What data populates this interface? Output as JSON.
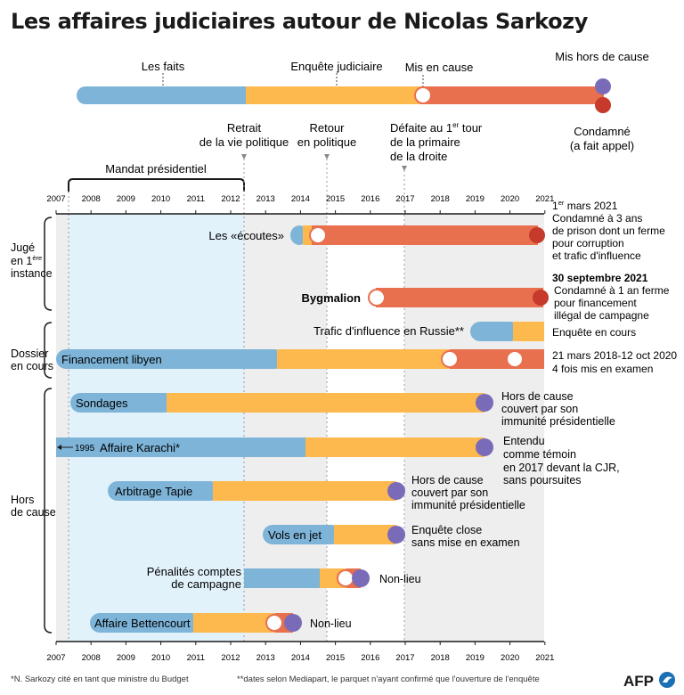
{
  "title": "Les affaires judiciaires autour de Nicolas Sarkozy",
  "colors": {
    "faits": "#7db4d8",
    "enquete": "#fdb94d",
    "mis_en_cause": "#e8704f",
    "hors_de_cause": "#7a6bb8",
    "condamne": "#c53a2a",
    "mandate_bg": "#e2f2fb",
    "grey_bg": "#eeeeee"
  },
  "legend": {
    "faits": "Les faits",
    "enquete": "Enquête judiciaire",
    "mis_en_cause": "Mis en cause",
    "hors_de_cause": "Mis hors de cause",
    "condamne_line1": "Condamné",
    "condamne_line2": "(a fait appel)"
  },
  "milestones": {
    "retrait_1": "Retrait",
    "retrait_2": "de la vie politique",
    "retour_1": "Retour",
    "retour_2": "en politique",
    "defaite_1": "Défaite au 1",
    "defaite_sup": "er",
    "defaite_1b": " tour",
    "defaite_2": "de la primaire",
    "defaite_3": "de la droite"
  },
  "mandat_label": "Mandat présidentiel",
  "years": [
    "2007",
    "2008",
    "2009",
    "2010",
    "2011",
    "2012",
    "2013",
    "2014",
    "2015",
    "2016",
    "2017",
    "2018",
    "2019",
    "2020",
    "2021"
  ],
  "groups": {
    "juge_1": "Jugé",
    "juge_2a": "en 1",
    "juge_2sup": "ère",
    "juge_3": "instance",
    "dossier_1": "Dossier",
    "dossier_2": "en cours",
    "hors_1": "Hors",
    "hors_2": "de cause"
  },
  "cases": {
    "ecoutes": "Les «écoutes»",
    "bygmalion": "Bygmalion",
    "russie": "Trafic d'influence en Russie**",
    "libyen": "Financement libyen",
    "sondages": "Sondages",
    "karachi": "Affaire Karachi*",
    "karachi_arrow": "1995",
    "tapie": "Arbitrage Tapie",
    "vols": "Vols en jet",
    "penalites_1": "Pénalités comptes",
    "penalites_2": "de campagne",
    "bettencourt": "Affaire Bettencourt"
  },
  "notes": {
    "ecoutes_1a": "1",
    "ecoutes_1sup": "er",
    "ecoutes_1b": " mars 2021",
    "ecoutes_2": "Condamné à 3 ans",
    "ecoutes_3": "de prison dont un ferme",
    "ecoutes_4": "pour corruption",
    "ecoutes_5": "et trafic d'influence",
    "bygmalion_1": "30 septembre 2021",
    "bygmalion_2": "Condamné à 1 an ferme",
    "bygmalion_3": "pour financement",
    "bygmalion_4": "illégal de campagne",
    "russie_1": "Enquête en cours",
    "libyen_1": "21 mars 2018-12 oct 2020",
    "libyen_2": "4 fois mis en examen",
    "sondages_1": "Hors de cause",
    "sondages_2": "couvert par son",
    "sondages_3": "immunité présidentielle",
    "karachi_1": "Entendu",
    "karachi_2": "comme témoin",
    "karachi_3": "en 2017 devant la CJR,",
    "karachi_4": "sans poursuites",
    "tapie_1": "Hors de cause",
    "tapie_2": "couvert par son",
    "tapie_3": "immunité présidentielle",
    "vols_1": "Enquête close",
    "vols_2": "sans mise en examen",
    "penalites_1": "Non-lieu",
    "bettencourt_1": "Non-lieu"
  },
  "footnotes": {
    "note1": "*N. Sarkozy cité en tant que ministre du Budget",
    "note2": "**dates selon Mediapart, le parquet n'ayant confirmé que l'ouverture de l'enquête"
  },
  "logo_text": "AFP"
}
